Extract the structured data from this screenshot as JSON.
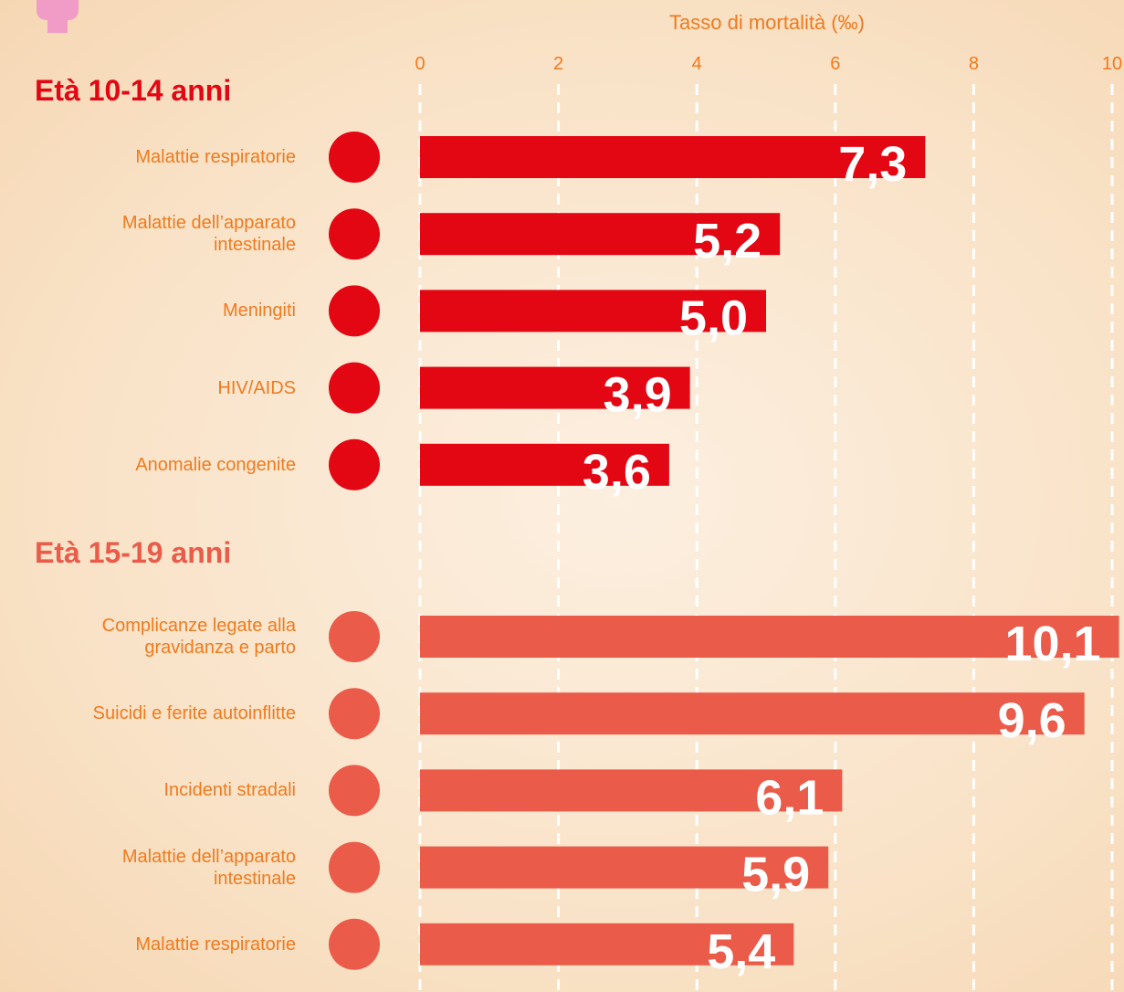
{
  "chart_data": {
    "type": "bar",
    "orientation": "horizontal",
    "xlabel": "Tasso di mortalità (‰)",
    "xlim": [
      0,
      10
    ],
    "xticks": [
      0,
      2,
      4,
      6,
      8,
      10
    ],
    "grid": true,
    "groups": [
      {
        "title": "Età 10-14 anni",
        "color": "#e30613",
        "categories": [
          "Malattie respiratorie",
          "Malattie dell’apparato\nintestinale",
          "Meningiti",
          "HIV/AIDS",
          "Anomalie congenite"
        ],
        "values": [
          7.3,
          5.2,
          5.0,
          3.9,
          3.6
        ],
        "value_labels": [
          "7,3",
          "5,2",
          "5,0",
          "3,9",
          "3,6"
        ]
      },
      {
        "title": "Età 15-19 anni",
        "color": "#ea5b4a",
        "categories": [
          "Complicanze legate alla\ngravidanza e parto",
          "Suicidi e ferite autoinflitte",
          "Incidenti stradali",
          "Malattie dell’apparato\nintestinale",
          "Malattie respiratorie"
        ],
        "values": [
          10.1,
          9.6,
          6.1,
          5.9,
          5.4
        ],
        "value_labels": [
          "10,1",
          "9,6",
          "6,1",
          "5,9",
          "5,4"
        ]
      }
    ]
  }
}
